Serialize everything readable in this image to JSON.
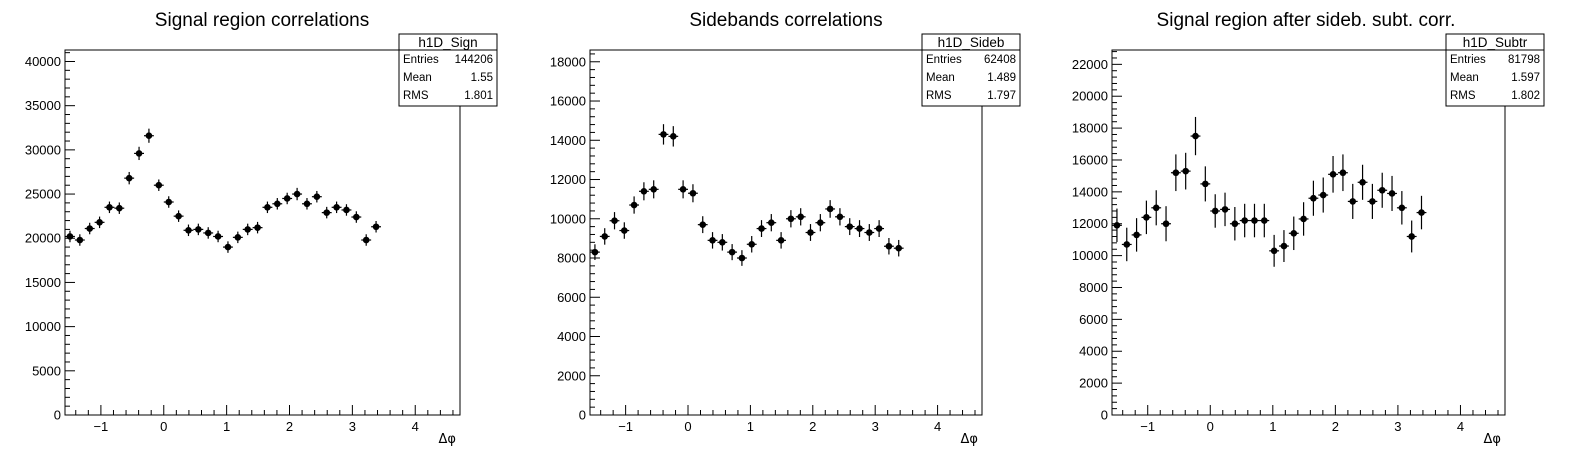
{
  "chart_data": [
    {
      "type": "scatter",
      "title": "Signal region correlations",
      "xlabel": "Δφ",
      "ylabel": "",
      "xlim": [
        -1.571,
        4.712
      ],
      "ylim": [
        0,
        41300
      ],
      "yticks": [
        0,
        5000,
        10000,
        15000,
        20000,
        25000,
        30000,
        35000,
        40000
      ],
      "xticks": [
        -1,
        0,
        1,
        2,
        3,
        4
      ],
      "grid": false,
      "stats": {
        "name": "h1D_Sign",
        "rows": [
          {
            "label": "Entries",
            "value": "144206"
          },
          {
            "label": "Mean",
            "value": "1.55"
          },
          {
            "label": "RMS",
            "value": "1.801"
          }
        ]
      },
      "series": [
        {
          "x": [
            -1.492,
            -1.335,
            -1.178,
            -1.021,
            -0.864,
            -0.707,
            -0.55,
            -0.393,
            -0.236,
            -0.079,
            0.079,
            0.236,
            0.393,
            0.55,
            0.707,
            0.864,
            1.021,
            1.178,
            1.335,
            1.492,
            1.649,
            1.806,
            1.963,
            2.121,
            2.278,
            2.435,
            2.592,
            2.749,
            2.906,
            3.063,
            3.22,
            3.377,
            3.534,
            3.691,
            3.848,
            4.005,
            4.162,
            4.32,
            4.477,
            4.634
          ],
          "y": [
            20200,
            19800,
            21100,
            21800,
            23500,
            23400,
            26800,
            29600,
            31600,
            26000,
            24100,
            22500,
            20900,
            21000,
            20600,
            20200,
            19000,
            20100,
            21000,
            21200,
            23500,
            23900,
            24500,
            25000,
            23900,
            24700,
            22900,
            23500,
            23200,
            22400,
            19800,
            21300,
            null,
            null,
            null,
            null,
            null,
            null,
            null,
            null
          ],
          "yerr": [
            650,
            650,
            650,
            650,
            650,
            650,
            700,
            750,
            800,
            650,
            650,
            650,
            650,
            650,
            650,
            650,
            650,
            650,
            650,
            650,
            650,
            650,
            650,
            700,
            650,
            650,
            650,
            650,
            650,
            650,
            650,
            650,
            null,
            null,
            null,
            null,
            null,
            null,
            null,
            null
          ]
        }
      ]
    },
    {
      "type": "scatter",
      "title": "Sidebands correlations",
      "xlabel": "Δφ",
      "ylabel": "",
      "xlim": [
        -1.571,
        4.712
      ],
      "ylim": [
        0,
        18600
      ],
      "yticks": [
        0,
        2000,
        4000,
        6000,
        8000,
        10000,
        12000,
        14000,
        16000,
        18000
      ],
      "xticks": [
        -1,
        0,
        1,
        2,
        3,
        4
      ],
      "grid": false,
      "stats": {
        "name": "h1D_Sideb",
        "rows": [
          {
            "label": "Entries",
            "value": "62408"
          },
          {
            "label": "Mean",
            "value": "1.489"
          },
          {
            "label": "RMS",
            "value": "1.797"
          }
        ]
      },
      "series": [
        {
          "x": [
            -1.492,
            -1.335,
            -1.178,
            -1.021,
            -0.864,
            -0.707,
            -0.55,
            -0.393,
            -0.236,
            -0.079,
            0.079,
            0.236,
            0.393,
            0.55,
            0.707,
            0.864,
            1.021,
            1.178,
            1.335,
            1.492,
            1.649,
            1.806,
            1.963,
            2.121,
            2.278,
            2.435,
            2.592,
            2.749,
            2.906,
            3.063,
            3.22,
            3.377,
            3.534,
            3.691,
            3.848,
            4.005,
            4.162,
            4.32,
            4.477,
            4.634
          ],
          "y": [
            8300,
            9100,
            9900,
            9400,
            10700,
            11400,
            11500,
            14300,
            14200,
            11500,
            11300,
            9700,
            8900,
            8800,
            8300,
            8000,
            8700,
            9500,
            9800,
            8900,
            10000,
            10100,
            9300,
            9800,
            10500,
            10100,
            9600,
            9500,
            9300,
            9500,
            8600,
            8500,
            null,
            null,
            null,
            null,
            null,
            null,
            null,
            null
          ],
          "yerr": [
            400,
            420,
            440,
            420,
            440,
            460,
            460,
            520,
            520,
            460,
            460,
            430,
            420,
            420,
            410,
            400,
            420,
            430,
            440,
            420,
            440,
            440,
            430,
            440,
            450,
            440,
            430,
            430,
            430,
            430,
            420,
            420,
            null,
            null,
            null,
            null,
            null,
            null,
            null,
            null
          ]
        }
      ]
    },
    {
      "type": "scatter",
      "title": "Signal region after sideb. subt. corr.",
      "xlabel": "Δφ",
      "ylabel": "",
      "xlim": [
        -1.571,
        4.712
      ],
      "ylim": [
        0,
        22900
      ],
      "yticks": [
        0,
        2000,
        4000,
        6000,
        8000,
        10000,
        12000,
        14000,
        16000,
        18000,
        20000,
        22000
      ],
      "xticks": [
        -1,
        0,
        1,
        2,
        3,
        4
      ],
      "grid": false,
      "stats": {
        "name": "h1D_Subtr",
        "rows": [
          {
            "label": "Entries",
            "value": "81798"
          },
          {
            "label": "Mean",
            "value": "1.597"
          },
          {
            "label": "RMS",
            "value": "1.802"
          }
        ]
      },
      "series": [
        {
          "x": [
            -1.492,
            -1.335,
            -1.178,
            -1.021,
            -0.864,
            -0.707,
            -0.55,
            -0.393,
            -0.236,
            -0.079,
            0.079,
            0.236,
            0.393,
            0.55,
            0.707,
            0.864,
            1.021,
            1.178,
            1.335,
            1.492,
            1.649,
            1.806,
            1.963,
            2.121,
            2.278,
            2.435,
            2.592,
            2.749,
            2.906,
            3.063,
            3.22,
            3.377,
            3.534,
            3.691,
            3.848,
            4.005,
            4.162,
            4.32,
            4.477,
            4.634
          ],
          "y": [
            11900,
            10700,
            11300,
            12400,
            13000,
            12000,
            15200,
            15300,
            17500,
            14500,
            12800,
            12900,
            12000,
            12200,
            12200,
            12200,
            10300,
            10600,
            11400,
            12300,
            13600,
            13800,
            15100,
            15200,
            13400,
            14600,
            13400,
            14100,
            13900,
            13000,
            11200,
            12700,
            null,
            null,
            null,
            null,
            null,
            null,
            null,
            null
          ],
          "yerr": [
            1050,
            1050,
            1050,
            1050,
            1100,
            1100,
            1150,
            1150,
            1200,
            1100,
            1050,
            1050,
            1050,
            1050,
            1050,
            1050,
            1000,
            1000,
            1050,
            1050,
            1100,
            1100,
            1150,
            1150,
            1100,
            1100,
            1100,
            1100,
            1100,
            1050,
            1000,
            1050,
            null,
            null,
            null,
            null,
            null,
            null,
            null,
            null
          ]
        }
      ]
    }
  ]
}
